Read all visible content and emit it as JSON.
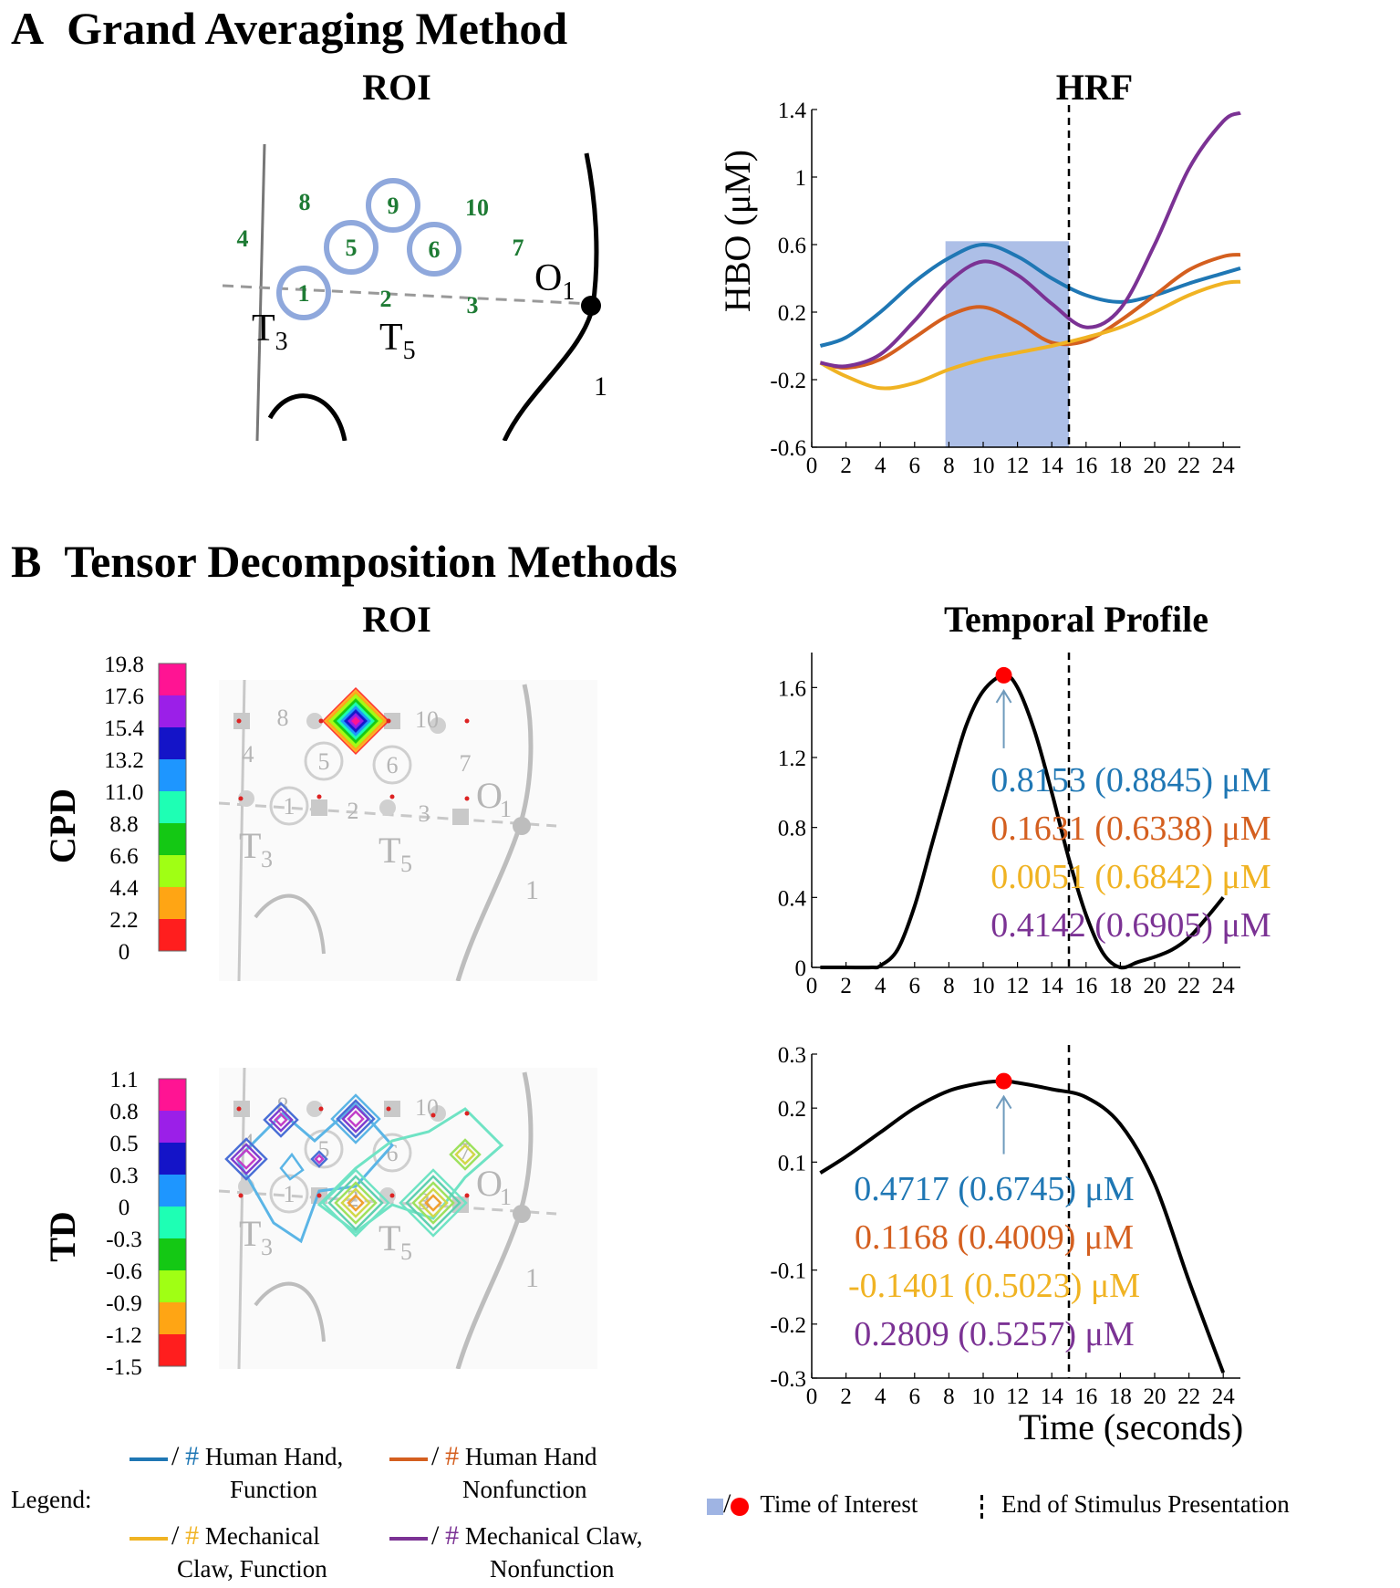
{
  "panel_a": {
    "letter": "A",
    "title": "Grand Averaging Method",
    "roi_title": "ROI",
    "hrf_title": "HRF"
  },
  "panel_b": {
    "letter": "B",
    "title": "Tensor Decomposition Methods",
    "roi_title": "ROI",
    "profile_title": "Temporal Profile",
    "cpd_label": "CPD",
    "td_label": "TD",
    "x_axis_label": "Time (seconds)"
  },
  "roi_a": {
    "channels": [
      {
        "id": "1",
        "circled": true
      },
      {
        "id": "2",
        "circled": false
      },
      {
        "id": "3",
        "circled": false
      },
      {
        "id": "4",
        "circled": false
      },
      {
        "id": "5",
        "circled": true
      },
      {
        "id": "6",
        "circled": true
      },
      {
        "id": "7",
        "circled": false
      },
      {
        "id": "8",
        "circled": false
      },
      {
        "id": "9",
        "circled": true
      },
      {
        "id": "10",
        "circled": false
      }
    ],
    "landmarks": {
      "t3": "T",
      "t3_sub": "3",
      "t5": "T",
      "t5_sub": "5",
      "o1": "O",
      "o1_sub": "1",
      "extra": "1"
    },
    "channel_color": "#1e7b34",
    "circle_color": "#8fa8dc"
  },
  "roi_b": {
    "channel_numbers": [
      "1",
      "2",
      "3",
      "4",
      "5",
      "6",
      "7",
      "8",
      "10"
    ],
    "landmarks": {
      "t3": "T",
      "t3_sub": "3",
      "t5": "T",
      "t5_sub": "5",
      "o1": "O",
      "o1_sub": "1",
      "extra": "1"
    }
  },
  "colorbars": {
    "cpd": {
      "labels": [
        "19.8",
        "17.6",
        "15.4",
        "13.2",
        "11.0",
        "8.8",
        "6.6",
        "4.4",
        "2.2",
        "0"
      ],
      "colors": [
        "#ff1493",
        "#9b1fe8",
        "#1414c8",
        "#1e96ff",
        "#1effb4",
        "#14c814",
        "#a0ff14",
        "#ffa514",
        "#ff1e1e"
      ]
    },
    "td": {
      "labels": [
        "1.1",
        "0.8",
        "0.5",
        "0.3",
        "0",
        "-0.3",
        "-0.6",
        "-0.9",
        "-1.2",
        "-1.5"
      ],
      "colors": [
        "#ff1493",
        "#9b1fe8",
        "#1414c8",
        "#1e96ff",
        "#1effb4",
        "#14c814",
        "#a0ff14",
        "#ffa514",
        "#ff1e1e"
      ]
    }
  },
  "colors": {
    "human_function": "#1f77b4",
    "human_nonfunction": "#d45f1f",
    "claw_function": "#f0b323",
    "claw_nonfunction": "#7b3294",
    "toi_box": "#9fb4e3",
    "toi_dot": "#ff0000"
  },
  "chart_data": [
    {
      "id": "hrf",
      "type": "line",
      "title": "HRF",
      "ylabel": "HBO (μM)",
      "xlabel": "",
      "xlim": [
        0,
        25
      ],
      "ylim": [
        -0.6,
        1.4
      ],
      "xticks": [
        "0",
        "2",
        "4",
        "6",
        "8",
        "10",
        "12",
        "14",
        "16",
        "18",
        "20",
        "22",
        "24"
      ],
      "yticks": [
        "-0.6",
        "-0.2",
        "0.2",
        "0.6",
        "1",
        "1.4"
      ],
      "shaded_region": {
        "x_start": 7.8,
        "x_end": 15,
        "label": "Time of Interest"
      },
      "stimulus_end": 15,
      "x": [
        0.5,
        2,
        4,
        6,
        8,
        10,
        12,
        14,
        16,
        18,
        20,
        22,
        24,
        25
      ],
      "series": [
        {
          "name": "Human Hand, Function",
          "color": "#1f77b4",
          "values": [
            0.0,
            0.05,
            0.2,
            0.38,
            0.52,
            0.6,
            0.53,
            0.4,
            0.3,
            0.26,
            0.3,
            0.37,
            0.43,
            0.46
          ]
        },
        {
          "name": "Human Hand Nonfunction",
          "color": "#d45f1f",
          "values": [
            -0.1,
            -0.13,
            -0.08,
            0.05,
            0.18,
            0.23,
            0.14,
            0.02,
            0.03,
            0.15,
            0.3,
            0.45,
            0.53,
            0.54
          ]
        },
        {
          "name": "Mechanical Claw, Function",
          "color": "#f0b323",
          "values": [
            -0.1,
            -0.18,
            -0.25,
            -0.22,
            -0.14,
            -0.08,
            -0.04,
            0.0,
            0.05,
            0.11,
            0.2,
            0.3,
            0.37,
            0.38
          ]
        },
        {
          "name": "Mechanical Claw, Nonfunction",
          "color": "#7b3294",
          "values": [
            -0.1,
            -0.12,
            -0.05,
            0.15,
            0.38,
            0.5,
            0.42,
            0.25,
            0.11,
            0.22,
            0.6,
            1.05,
            1.33,
            1.38
          ]
        }
      ]
    },
    {
      "id": "cpd_profile",
      "type": "line",
      "title": "Temporal Profile",
      "xlim": [
        0,
        25
      ],
      "ylim": [
        0,
        1.8
      ],
      "xticks": [
        "0",
        "2",
        "4",
        "6",
        "8",
        "10",
        "12",
        "14",
        "16",
        "18",
        "20",
        "22",
        "24"
      ],
      "yticks": [
        "0",
        "0.4",
        "0.8",
        "1.2",
        "1.6"
      ],
      "stimulus_end": 15,
      "time_of_interest": {
        "x": 11.2,
        "y": 1.67
      },
      "x": [
        0.5,
        2,
        3.5,
        4,
        5,
        6,
        7,
        8,
        9,
        10,
        11.2,
        12,
        13,
        14,
        15,
        16,
        17,
        18,
        19,
        20,
        21,
        22,
        23,
        24
      ],
      "series": [
        {
          "name": "CPD temporal profile",
          "color": "#000000",
          "values": [
            0,
            0,
            0,
            0.01,
            0.1,
            0.35,
            0.7,
            1.05,
            1.38,
            1.58,
            1.67,
            1.6,
            1.35,
            1.0,
            0.62,
            0.3,
            0.08,
            0.0,
            0.03,
            0.06,
            0.1,
            0.17,
            0.28,
            0.4
          ]
        }
      ],
      "annotations": [
        {
          "text": "0.8153 (0.8845) μM",
          "color": "#1f77b4"
        },
        {
          "text": "0.1631 (0.6338) μM",
          "color": "#d45f1f"
        },
        {
          "text": "0.0051 (0.6842) μM",
          "color": "#f0b323"
        },
        {
          "text": "0.4142 (0.6905) μM",
          "color": "#7b3294"
        }
      ]
    },
    {
      "id": "td_profile",
      "type": "line",
      "xlabel": "Time (seconds)",
      "xlim": [
        0,
        25
      ],
      "ylim": [
        -0.3,
        0.3
      ],
      "xticks": [
        "0",
        "2",
        "4",
        "6",
        "8",
        "10",
        "12",
        "14",
        "16",
        "18",
        "20",
        "22",
        "24"
      ],
      "yticks": [
        "-0.3",
        "-0.2",
        "-0.1",
        "0.1",
        "0.2",
        "0.3"
      ],
      "stimulus_end": 15,
      "time_of_interest": {
        "x": 11.2,
        "y": 0.25
      },
      "x": [
        0.5,
        2,
        4,
        6,
        8,
        10,
        11.2,
        12,
        14,
        16,
        18,
        20,
        22,
        24
      ],
      "series": [
        {
          "name": "TD temporal profile",
          "color": "#000000",
          "values": [
            0.08,
            0.11,
            0.155,
            0.2,
            0.232,
            0.247,
            0.25,
            0.247,
            0.235,
            0.22,
            0.17,
            0.06,
            -0.12,
            -0.29
          ]
        }
      ],
      "annotations": [
        {
          "text": "0.4717 (0.6745) μM",
          "color": "#1f77b4"
        },
        {
          "text": "0.1168 (0.4009) μM",
          "color": "#d45f1f"
        },
        {
          "text": "-0.1401 (0.5023) μM",
          "color": "#f0b323"
        },
        {
          "text": "0.2809 (0.5257) μM",
          "color": "#7b3294"
        }
      ]
    }
  ],
  "legend": {
    "title": "Legend:",
    "slash": "/",
    "hash": "#",
    "items": [
      {
        "line1": "Human Hand,",
        "line2": "Function",
        "color": "#1f77b4"
      },
      {
        "line1": "Human Hand",
        "line2": "Nonfunction",
        "color": "#d45f1f"
      },
      {
        "line1": "Mechanical",
        "line2": "Claw, Function",
        "color": "#f0b323"
      },
      {
        "line1": "Mechanical Claw,",
        "line2": "Nonfunction",
        "color": "#7b3294"
      }
    ],
    "toi_label": "Time of Interest",
    "stim_label": "End of Stimulus Presentation"
  }
}
